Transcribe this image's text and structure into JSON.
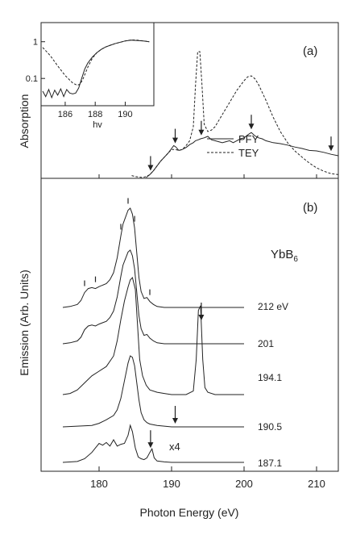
{
  "chart_data": [
    {
      "panel_label": "(a)",
      "type": "line",
      "ylabel": "Absorption",
      "xlim": [
        172,
        213
      ],
      "ylog": false,
      "legend_position": "right",
      "series": [
        {
          "name": "PFY",
          "style": "solid",
          "x": [
            186.5,
            187,
            187.5,
            188,
            188.5,
            189,
            189.5,
            190,
            190.3,
            190.6,
            191,
            191.5,
            192,
            192.5,
            193,
            193.3,
            193.7,
            194,
            194.5,
            195,
            195.5,
            196,
            196.5,
            197,
            197.5,
            198,
            198.5,
            199,
            199.5,
            200,
            200.5,
            201,
            201.5,
            202,
            202.5,
            203,
            204,
            205,
            206,
            207,
            208,
            209,
            210,
            211,
            212,
            213
          ],
          "y": [
            0,
            0.06,
            0.14,
            0.24,
            0.34,
            0.42,
            0.5,
            0.6,
            0.66,
            0.63,
            0.56,
            0.58,
            0.62,
            0.68,
            0.72,
            0.76,
            0.78,
            0.8,
            0.82,
            0.85,
            0.78,
            0.76,
            0.74,
            0.72,
            0.74,
            0.76,
            0.72,
            0.76,
            0.8,
            0.82,
            0.88,
            0.93,
            0.86,
            0.82,
            0.8,
            0.76,
            0.72,
            0.7,
            0.67,
            0.63,
            0.6,
            0.56,
            0.55,
            0.52,
            0.48,
            0.45
          ]
        },
        {
          "name": "TEY",
          "style": "dashed",
          "x": [
            184.5,
            185,
            185.5,
            186,
            186.5,
            187,
            187.5,
            188,
            188.5,
            189,
            189.5,
            190,
            190.5,
            191,
            191.5,
            192,
            192.5,
            193,
            193.3,
            193.6,
            193.9,
            194.2,
            194.5,
            195,
            195.5,
            196,
            197,
            198,
            199,
            200,
            200.5,
            201,
            201.5,
            202,
            203,
            204,
            205,
            206,
            207,
            208,
            209,
            210,
            211,
            212,
            213
          ],
          "y": [
            0.04,
            0.02,
            0.01,
            0.0,
            0.02,
            0.06,
            0.14,
            0.24,
            0.34,
            0.42,
            0.5,
            0.58,
            0.58,
            0.56,
            0.58,
            0.66,
            0.76,
            1.05,
            1.9,
            2.6,
            2.6,
            1.9,
            1.1,
            0.95,
            0.98,
            1.05,
            1.3,
            1.55,
            1.8,
            2.0,
            2.08,
            2.1,
            2.04,
            1.92,
            1.6,
            1.25,
            0.95,
            0.72,
            0.55,
            0.42,
            0.3,
            0.2,
            0.13,
            0.08,
            0.06
          ]
        }
      ],
      "arrows_x": [
        187.1,
        190.5,
        194.1,
        201,
        212
      ],
      "legend": [
        "PFY",
        "TEY"
      ],
      "inset": {
        "xlabel": "hv",
        "x_ticks": [
          "186",
          "188",
          "190"
        ],
        "y_ticks": [
          "1",
          "0.1"
        ],
        "ylog": true,
        "xlim": [
          184.5,
          191.8
        ],
        "ylim": [
          0.02,
          3
        ],
        "series": [
          {
            "name": "PFY",
            "style": "solid",
            "x": [
              184.5,
              184.7,
              184.9,
              185.1,
              185.3,
              185.5,
              185.7,
              185.9,
              186.1,
              186.3,
              186.5,
              186.7,
              186.9,
              187.1,
              187.3,
              187.5,
              187.8,
              188.1,
              188.4,
              188.7,
              189.0,
              189.3,
              189.6,
              190.0,
              190.4,
              190.8,
              191.2,
              191.6
            ],
            "y": [
              0.045,
              0.032,
              0.05,
              0.03,
              0.048,
              0.035,
              0.052,
              0.032,
              0.05,
              0.04,
              0.038,
              0.04,
              0.055,
              0.1,
              0.18,
              0.26,
              0.38,
              0.5,
              0.62,
              0.72,
              0.8,
              0.88,
              0.95,
              1.05,
              1.1,
              1.08,
              1.05,
              1.0
            ]
          },
          {
            "name": "TEY",
            "style": "dashed",
            "x": [
              184.5,
              185.0,
              185.5,
              186.0,
              186.5,
              186.8,
              187.0,
              187.2,
              187.5,
              187.8,
              188.1,
              188.4,
              188.7,
              189.0,
              189.3,
              189.6,
              190.0,
              190.4,
              190.8,
              191.2,
              191.6
            ],
            "y": [
              0.7,
              0.42,
              0.22,
              0.12,
              0.075,
              0.065,
              0.07,
              0.1,
              0.2,
              0.35,
              0.5,
              0.62,
              0.72,
              0.8,
              0.88,
              0.95,
              1.05,
              1.12,
              1.1,
              1.05,
              1.0
            ]
          }
        ]
      }
    },
    {
      "panel_label": "(b)",
      "type": "line",
      "ylabel": "Emission (Arb. Units)",
      "xlabel": "Photon Energy (eV)",
      "x_ticks": [
        "180",
        "190",
        "200",
        "210"
      ],
      "xlim": [
        172,
        213
      ],
      "compound_text": "YbB",
      "compound_subscript": "6",
      "series": [
        {
          "name": "212 eV",
          "label": "212 eV",
          "x": [
            175,
            176,
            177,
            177.5,
            178,
            178.5,
            179,
            179.5,
            180,
            181,
            181.5,
            182,
            182.5,
            183,
            183.3,
            183.6,
            184,
            184.3,
            184.6,
            184.9,
            185.2,
            185.5,
            185.8,
            186.2,
            186.6,
            187,
            187.5,
            188,
            189,
            190,
            195,
            200
          ],
          "y": [
            0,
            0.01,
            0.03,
            0.07,
            0.15,
            0.19,
            0.2,
            0.19,
            0.21,
            0.24,
            0.28,
            0.35,
            0.5,
            0.72,
            0.84,
            0.9,
            0.98,
            1.0,
            0.94,
            0.8,
            0.55,
            0.3,
            0.16,
            0.09,
            0.1,
            0.06,
            0.03,
            0.01,
            0,
            0,
            0,
            0
          ]
        },
        {
          "name": "201",
          "label": "201",
          "x": [
            175,
            176,
            177,
            177.5,
            178,
            178.5,
            179,
            179.5,
            180,
            181,
            181.5,
            182,
            182.5,
            183,
            183.3,
            183.6,
            184,
            184.3,
            184.6,
            184.9,
            185.2,
            185.5,
            185.8,
            186.2,
            186.6,
            187,
            187.5,
            188,
            189,
            190,
            195,
            200
          ],
          "y": [
            0,
            0.01,
            0.03,
            0.07,
            0.15,
            0.19,
            0.2,
            0.19,
            0.21,
            0.24,
            0.28,
            0.35,
            0.5,
            0.72,
            0.84,
            0.9,
            0.98,
            1.0,
            0.94,
            0.8,
            0.55,
            0.3,
            0.16,
            0.09,
            0.1,
            0.06,
            0.03,
            0.01,
            0,
            0,
            0,
            0
          ]
        },
        {
          "name": "194.1",
          "label": "194.1",
          "x": [
            175,
            176,
            177,
            178,
            179,
            180,
            181,
            182,
            182.5,
            183,
            183.5,
            184,
            184.3,
            184.6,
            185,
            185.3,
            185.6,
            186,
            186.5,
            187,
            188,
            189,
            190,
            191,
            192,
            193,
            193.4,
            193.7,
            194,
            194.3,
            194.6,
            195,
            196,
            198,
            200
          ],
          "y": [
            0,
            0.01,
            0.04,
            0.1,
            0.16,
            0.2,
            0.24,
            0.33,
            0.46,
            0.64,
            0.8,
            0.92,
            0.98,
            1.0,
            0.9,
            0.6,
            0.3,
            0.16,
            0.08,
            0.04,
            0.02,
            0.01,
            0,
            0,
            0,
            0.03,
            0.3,
            0.72,
            0.76,
            0.3,
            0.06,
            0.02,
            0,
            0,
            0
          ]
        },
        {
          "name": "190.5",
          "label": "190.5",
          "x": [
            175,
            177,
            179,
            180,
            181,
            182,
            182.5,
            183,
            183.5,
            184,
            184.3,
            184.6,
            184.9,
            185.2,
            185.5,
            185.8,
            186.2,
            186.6,
            187,
            188,
            189,
            190,
            191,
            192,
            194,
            196,
            198,
            200
          ],
          "y": [
            0,
            0.01,
            0.02,
            0.05,
            0.1,
            0.16,
            0.24,
            0.4,
            0.65,
            0.9,
            1.0,
            0.98,
            0.86,
            0.62,
            0.38,
            0.2,
            0.1,
            0.06,
            0.04,
            0.02,
            0.01,
            0,
            0,
            0,
            0,
            0,
            0,
            0
          ]
        },
        {
          "name": "187.1",
          "label": "187.1",
          "multiplier": "x4",
          "x": [
            175,
            177,
            178,
            179,
            179.5,
            180,
            180.5,
            181,
            181.5,
            182,
            182.5,
            183,
            183.5,
            184,
            184.3,
            184.6,
            185,
            185.4,
            185.8,
            186.2,
            186.6,
            187,
            187.3,
            187.6,
            188,
            189,
            190,
            195,
            200
          ],
          "y": [
            0,
            0.02,
            0.08,
            0.22,
            0.32,
            0.42,
            0.38,
            0.44,
            0.36,
            0.5,
            0.36,
            0.4,
            0.42,
            0.6,
            0.82,
            0.68,
            0.32,
            0.12,
            0.08,
            0.06,
            0.1,
            0.22,
            0.3,
            0.1,
            0.03,
            0.01,
            0,
            0,
            0
          ]
        }
      ],
      "arrows": [
        {
          "series": "194.1",
          "x": 194.1
        },
        {
          "series": "190.5",
          "x": 190.5
        },
        {
          "series": "187.1",
          "x": 187.1
        }
      ],
      "tick_marks_212": [
        178.0,
        179.5,
        183.0,
        184.0,
        184.9,
        187.0
      ]
    }
  ]
}
